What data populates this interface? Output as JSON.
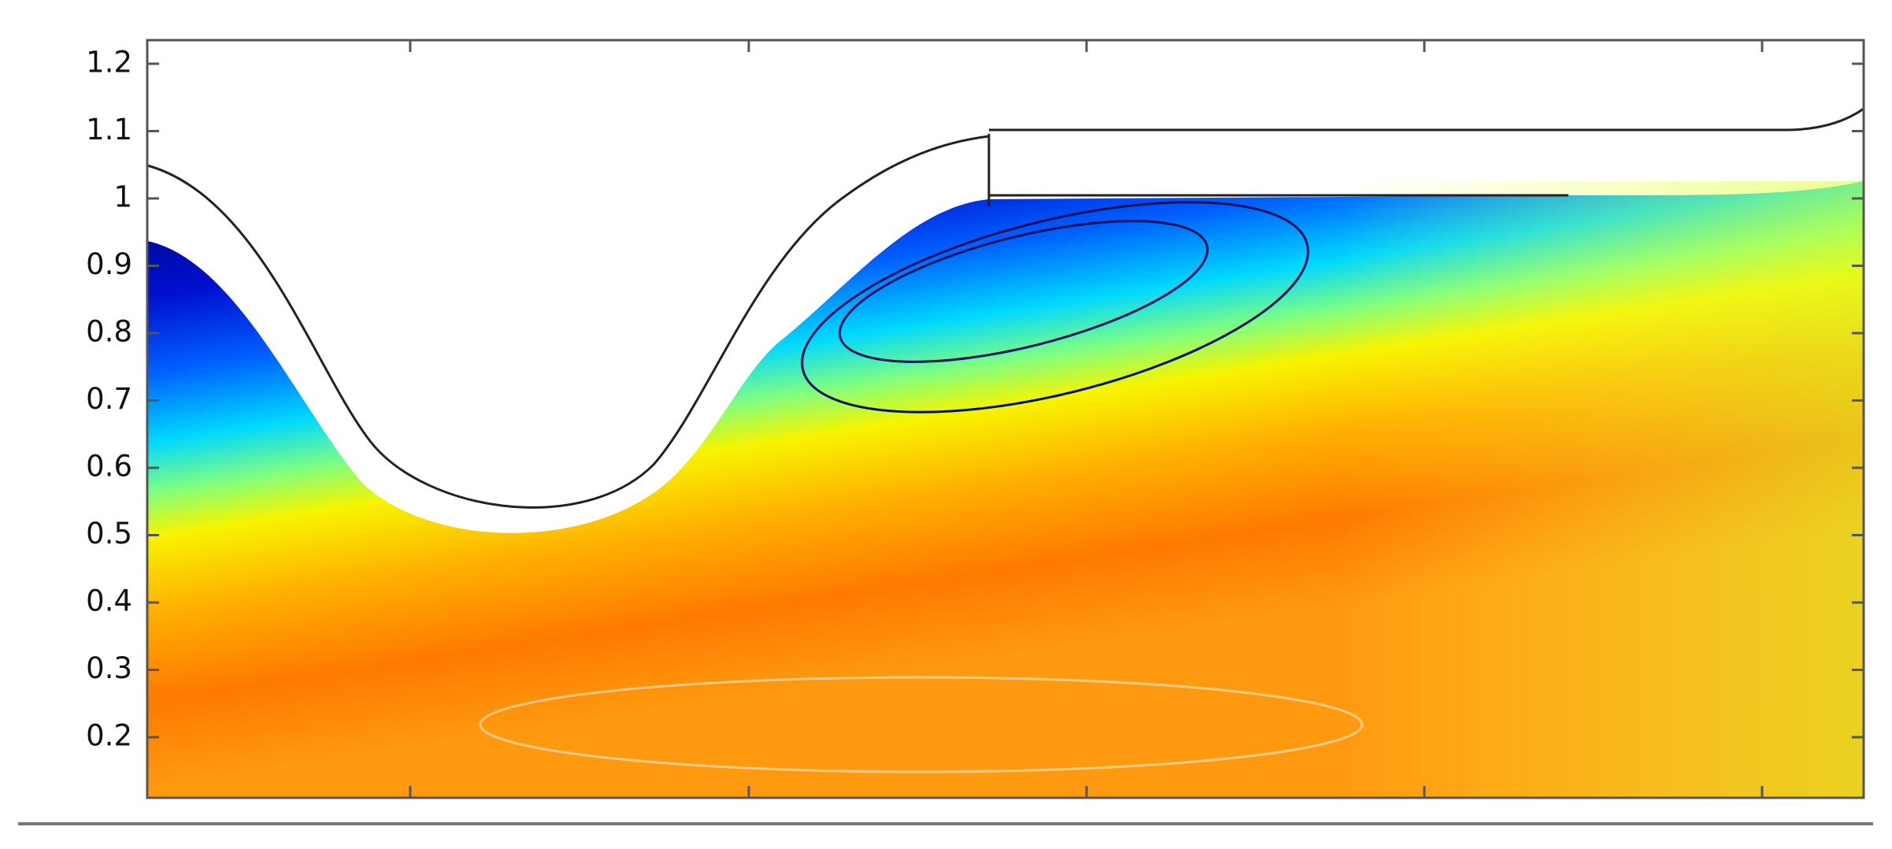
{
  "chart_data": {
    "type": "contour",
    "ylim": [
      0.11,
      1.235
    ],
    "yticks": [
      0.2,
      0.3,
      0.4,
      0.5,
      0.6,
      0.7,
      0.8,
      0.9,
      1,
      1.1,
      1.2
    ]
  }
}
